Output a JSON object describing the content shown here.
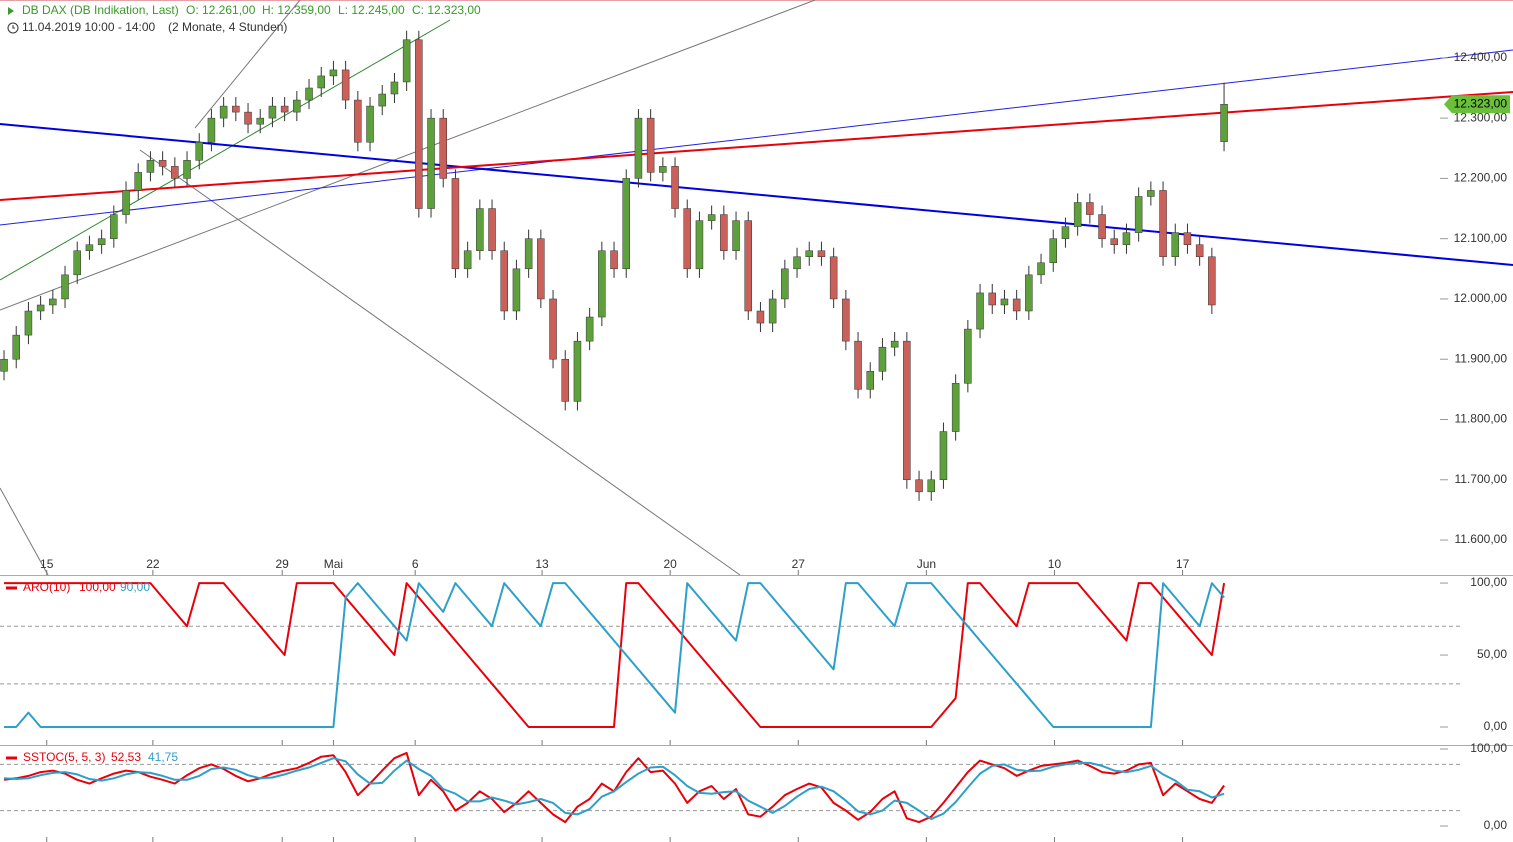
{
  "header": {
    "title": "DB DAX (DB Indikation, Last)",
    "ohlc": [
      "O: 12.261,00",
      "H: 12.359,00",
      "L: 12.245,00",
      "C: 12.323,00"
    ],
    "period": "11.04.2019 10:00 - 14:00",
    "range": "(2 Monate, 4 Stunden)"
  },
  "chart_data": [
    {
      "type": "candlestick",
      "grid": false,
      "up_color": "#5ea03c",
      "down_color": "#c9605a",
      "wick_color": "#333333",
      "tag_color": "#6bbf3a",
      "xlim": [
        -0.33,
        117.7
      ],
      "xticks": [
        {
          "value": 3.5,
          "label": "15"
        },
        {
          "value": 12.2,
          "label": "22"
        },
        {
          "value": 22.8,
          "label": "29"
        },
        {
          "value": 27,
          "label": "Mai"
        },
        {
          "value": 33.7,
          "label": "6"
        },
        {
          "value": 44.1,
          "label": "13"
        },
        {
          "value": 54.6,
          "label": "20"
        },
        {
          "value": 65.1,
          "label": "27"
        },
        {
          "value": 75.6,
          "label": "Jun"
        },
        {
          "value": 86.1,
          "label": "10"
        },
        {
          "value": 96.6,
          "label": "17"
        }
      ],
      "ylim": [
        11542,
        12496
      ],
      "yticks": [
        {
          "value": 11600,
          "label": "11.600,00"
        },
        {
          "value": 11700,
          "label": "11.700,00"
        },
        {
          "value": 11800,
          "label": "11.800,00"
        },
        {
          "value": 11900,
          "label": "11.900,00"
        },
        {
          "value": 12000,
          "label": "12.000,00"
        },
        {
          "value": 12100,
          "label": "12.100,00"
        },
        {
          "value": 12200,
          "label": "12.200,00"
        },
        {
          "value": 12300,
          "label": "12.300,00"
        },
        {
          "value": 12400,
          "label": "12.400,00"
        }
      ],
      "last_label": "12.323,00",
      "open": [
        11880,
        11900,
        11940,
        11980,
        11990,
        12000,
        12040,
        12080,
        12090,
        12100,
        12140,
        12180,
        12210,
        12230,
        12220,
        12200,
        12230,
        12260,
        12300,
        12320,
        12310,
        12290,
        12300,
        12320,
        12310,
        12330,
        12350,
        12370,
        12380,
        12330,
        12260,
        12320,
        12340,
        12360,
        12430,
        12150,
        12300,
        12200,
        12050,
        12080,
        12150,
        12080,
        11980,
        12050,
        12100,
        12000,
        11900,
        11830,
        11930,
        11970,
        12080,
        12050,
        12200,
        12300,
        12210,
        12220,
        12150,
        12050,
        12130,
        12140,
        12080,
        12130,
        11980,
        11960,
        12000,
        12050,
        12070,
        12080,
        12070,
        12000,
        11930,
        11850,
        11880,
        11920,
        11930,
        11700,
        11680,
        11700,
        11780,
        11860,
        11950,
        12010,
        11990,
        12000,
        11980,
        12040,
        12060,
        12100,
        12120,
        12160,
        12140,
        12100,
        12090,
        12110,
        12170,
        12180,
        12070,
        12110,
        12090,
        12070,
        12261
      ],
      "high": [
        11915,
        11955,
        11995,
        12005,
        12015,
        12055,
        12095,
        12105,
        12115,
        12155,
        12195,
        12225,
        12245,
        12245,
        12235,
        12245,
        12275,
        12315,
        12335,
        12335,
        12325,
        12315,
        12335,
        12335,
        12345,
        12365,
        12385,
        12395,
        12395,
        12345,
        12335,
        12355,
        12375,
        12445,
        12445,
        12315,
        12315,
        12215,
        12095,
        12165,
        12165,
        12095,
        12065,
        12115,
        12115,
        12015,
        11915,
        11945,
        11985,
        12095,
        12095,
        12215,
        12315,
        12315,
        12235,
        12235,
        12165,
        12145,
        12155,
        12155,
        12145,
        12145,
        11995,
        12015,
        12065,
        12085,
        12095,
        12095,
        12085,
        12015,
        11945,
        11895,
        11935,
        11945,
        11945,
        11715,
        11715,
        11795,
        11875,
        11965,
        12025,
        12025,
        12015,
        12015,
        12055,
        12075,
        12115,
        12135,
        12175,
        12175,
        12155,
        12115,
        12125,
        12185,
        12195,
        12195,
        12125,
        12125,
        12105,
        12085,
        12359
      ],
      "low": [
        11865,
        11885,
        11925,
        11965,
        11975,
        11985,
        12025,
        12065,
        12075,
        12085,
        12125,
        12165,
        12195,
        12205,
        12185,
        12185,
        12215,
        12245,
        12285,
        12295,
        12275,
        12275,
        12285,
        12295,
        12295,
        12315,
        12335,
        12355,
        12315,
        12245,
        12245,
        12305,
        12325,
        12345,
        12135,
        12135,
        12185,
        12035,
        12035,
        12065,
        12065,
        11965,
        11965,
        12035,
        11985,
        11885,
        11815,
        11815,
        11915,
        11955,
        12035,
        12035,
        12185,
        12195,
        12195,
        12135,
        12035,
        12035,
        12115,
        12065,
        12065,
        11965,
        11945,
        11945,
        11985,
        12035,
        12055,
        12055,
        11985,
        11915,
        11835,
        11835,
        11865,
        11905,
        11685,
        11665,
        11665,
        11685,
        11765,
        11845,
        11935,
        11975,
        11975,
        11965,
        11965,
        12025,
        12045,
        12085,
        12105,
        12125,
        12085,
        12075,
        12075,
        12095,
        12155,
        12055,
        12055,
        12075,
        12055,
        11975,
        12245
      ],
      "close": [
        11900,
        11940,
        11980,
        11990,
        12000,
        12040,
        12080,
        12090,
        12100,
        12140,
        12180,
        12210,
        12230,
        12220,
        12200,
        12230,
        12260,
        12300,
        12320,
        12310,
        12290,
        12300,
        12320,
        12310,
        12330,
        12350,
        12370,
        12380,
        12330,
        12260,
        12320,
        12340,
        12360,
        12430,
        12150,
        12300,
        12200,
        12050,
        12080,
        12150,
        12080,
        11980,
        12050,
        12100,
        12000,
        11900,
        11830,
        11930,
        11970,
        12080,
        12050,
        12200,
        12300,
        12210,
        12220,
        12150,
        12050,
        12130,
        12140,
        12080,
        12130,
        11980,
        11960,
        12000,
        12050,
        12070,
        12080,
        12070,
        12000,
        11930,
        11850,
        11880,
        11920,
        11930,
        11700,
        11680,
        11700,
        11780,
        11860,
        11950,
        12010,
        11990,
        12000,
        11980,
        12040,
        12060,
        12100,
        12120,
        12160,
        12140,
        12100,
        12090,
        12110,
        12170,
        12180,
        12070,
        12110,
        12090,
        12070,
        11990,
        12323
      ]
    },
    {
      "type": "line",
      "grid": false,
      "xlim": [
        -0.33,
        117.7
      ],
      "ylim": [
        -12.5,
        105.6
      ],
      "yticks": [
        {
          "value": 0,
          "label": "0,00"
        },
        {
          "value": 50,
          "label": "50,00"
        },
        {
          "value": 100,
          "label": "100,00"
        }
      ],
      "levels": [
        30,
        70
      ],
      "series": [
        {
          "name": "ARO(10)",
          "color": "#e8000b",
          "value_label": "100,00",
          "values": [
            100,
            100,
            100,
            100,
            100,
            100,
            100,
            100,
            100,
            100,
            100,
            100,
            100,
            90,
            80,
            70,
            100,
            100,
            100,
            90,
            80,
            70,
            60,
            50,
            100,
            100,
            100,
            100,
            90,
            80,
            70,
            60,
            50,
            100,
            90,
            80,
            70,
            60,
            50,
            40,
            30,
            20,
            10,
            0,
            0,
            0,
            0,
            0,
            0,
            0,
            0,
            100,
            100,
            90,
            80,
            70,
            60,
            50,
            40,
            30,
            20,
            10,
            0,
            0,
            0,
            0,
            0,
            0,
            0,
            0,
            0,
            0,
            0,
            0,
            0,
            0,
            0,
            10,
            20,
            100,
            100,
            90,
            80,
            70,
            100,
            100,
            100,
            100,
            100,
            90,
            80,
            70,
            60,
            100,
            100,
            90,
            80,
            70,
            60,
            50,
            100
          ]
        },
        {
          "color": "#2e9fc9",
          "value_label": "90,00",
          "values": [
            0,
            0,
            10,
            0,
            0,
            0,
            0,
            0,
            0,
            0,
            0,
            0,
            0,
            0,
            0,
            0,
            0,
            0,
            0,
            0,
            0,
            0,
            0,
            0,
            0,
            0,
            0,
            0,
            90,
            100,
            90,
            80,
            70,
            60,
            100,
            90,
            80,
            100,
            90,
            80,
            70,
            100,
            90,
            80,
            70,
            100,
            100,
            90,
            80,
            70,
            60,
            50,
            40,
            30,
            20,
            10,
            100,
            90,
            80,
            70,
            60,
            100,
            100,
            90,
            80,
            70,
            60,
            50,
            40,
            100,
            100,
            90,
            80,
            70,
            100,
            100,
            100,
            90,
            80,
            70,
            60,
            50,
            40,
            30,
            20,
            10,
            0,
            0,
            0,
            0,
            0,
            0,
            0,
            0,
            0,
            100,
            90,
            80,
            70,
            100,
            90
          ]
        }
      ]
    },
    {
      "type": "line",
      "grid": false,
      "xlim": [
        -0.33,
        117.7
      ],
      "ylim": [
        -20.8,
        105.2
      ],
      "yticks": [
        {
          "value": 0,
          "label": "0,00"
        },
        {
          "value": 100,
          "label": "100,00"
        }
      ],
      "levels": [
        20,
        80
      ],
      "series": [
        {
          "name": "SSTOC(5, 5, 3)",
          "color": "#e8000b",
          "value_label": "52,53",
          "values": [
            60,
            62,
            65,
            70,
            72,
            68,
            60,
            55,
            62,
            68,
            72,
            70,
            64,
            60,
            55,
            66,
            75,
            80,
            74,
            65,
            58,
            62,
            68,
            72,
            75,
            82,
            90,
            92,
            70,
            40,
            55,
            72,
            88,
            95,
            40,
            60,
            45,
            20,
            30,
            45,
            35,
            18,
            30,
            45,
            30,
            15,
            5,
            25,
            35,
            55,
            45,
            70,
            88,
            70,
            72,
            55,
            30,
            45,
            52,
            35,
            48,
            15,
            12,
            25,
            40,
            48,
            55,
            50,
            30,
            20,
            8,
            18,
            35,
            45,
            10,
            5,
            12,
            30,
            50,
            70,
            85,
            80,
            75,
            65,
            72,
            78,
            80,
            82,
            85,
            78,
            70,
            68,
            72,
            80,
            82,
            40,
            55,
            45,
            35,
            30,
            52.53
          ]
        },
        {
          "color": "#2e9fc9",
          "value_label": "41,75",
          "values": [
            62,
            61,
            62,
            66,
            69,
            70,
            67,
            61,
            59,
            62,
            67,
            70,
            69,
            65,
            60,
            60,
            65,
            74,
            76,
            73,
            66,
            62,
            63,
            67,
            72,
            76,
            82,
            88,
            84,
            67,
            55,
            56,
            72,
            85,
            74,
            65,
            48,
            42,
            32,
            32,
            37,
            33,
            28,
            31,
            35,
            30,
            17,
            15,
            22,
            38,
            45,
            57,
            68,
            76,
            77,
            66,
            52,
            43,
            42,
            44,
            45,
            33,
            25,
            17,
            26,
            38,
            48,
            51,
            45,
            33,
            19,
            15,
            20,
            33,
            30,
            20,
            9,
            16,
            31,
            50,
            68,
            78,
            80,
            73,
            71,
            72,
            77,
            80,
            82,
            82,
            78,
            72,
            70,
            73,
            78,
            67,
            59,
            47,
            45,
            37,
            41.75
          ]
        }
      ]
    }
  ]
}
